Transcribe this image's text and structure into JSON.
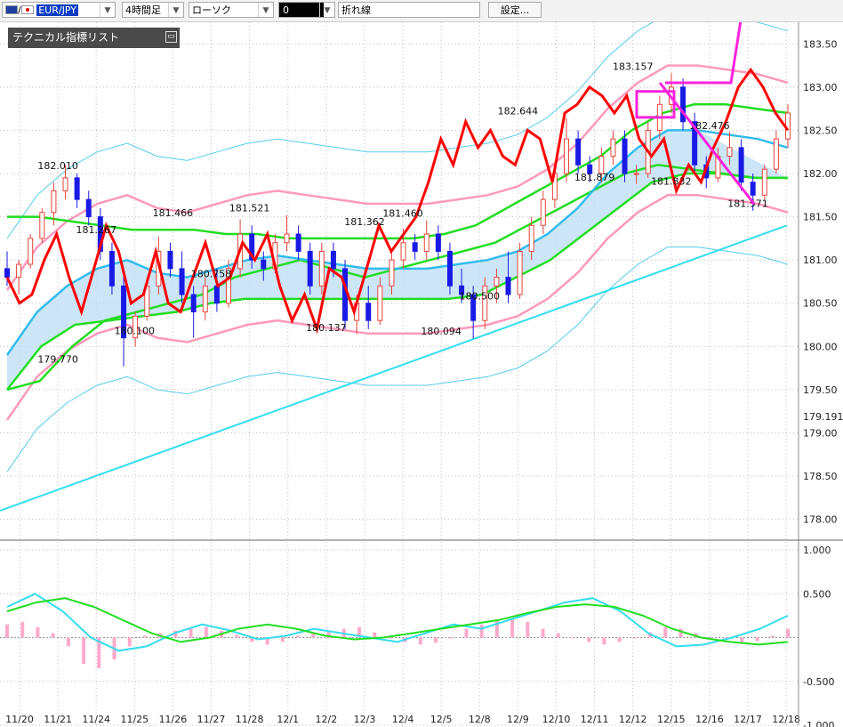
{
  "toolbar": {
    "symbol": "EUR/JPY",
    "timeframe": "4時間足",
    "chart_style": "ローソク",
    "compare_value": "0",
    "line_type": "折れ線",
    "settings_label": "設定..."
  },
  "indicator_panel": {
    "title": "テクニカル指標リスト"
  },
  "colors": {
    "bull_candle": "#e8433a",
    "bear_candle": "#1a1ae6",
    "heikin_line": "#ff0000",
    "ma_green": "#22dd22",
    "ma_cyan": "#33bbee",
    "bollinger_pink": "#ff99bb",
    "bollinger_outer": "#55ccee",
    "cloud_fill": "#bfe0f5",
    "trend_magenta": "#ff22dd",
    "grid": "#bfbfbf"
  },
  "chart_data": {
    "type": "line",
    "x_labels": [
      "11/20",
      "11/21",
      "11/24",
      "11/25",
      "11/26",
      "11/27",
      "11/28",
      "12/1",
      "12/2",
      "12/3",
      "12/4",
      "12/5",
      "12/8",
      "12/9",
      "12/10",
      "12/11",
      "12/12",
      "12/15",
      "12/16",
      "12/17",
      "12/18"
    ],
    "ylim": [
      177.78,
      183.75
    ],
    "y_ticks": [
      "183.50",
      "183.00",
      "182.50",
      "182.00",
      "181.50",
      "181.00",
      "180.50",
      "180.00",
      "179.50",
      "179.00",
      "178.50",
      "178.00"
    ],
    "current_price_label": "179.191",
    "price_annotations": [
      {
        "text": "182.010",
        "x": "11/21",
        "value": 182.01
      },
      {
        "text": "181.267",
        "x": "11/24",
        "value": 181.267
      },
      {
        "text": "179.770",
        "x": "11/21",
        "value": 179.77
      },
      {
        "text": "180.100",
        "x": "11/25",
        "value": 180.1
      },
      {
        "text": "181.466",
        "x": "11/26",
        "value": 181.466
      },
      {
        "text": "180.758",
        "x": "11/27",
        "value": 180.758
      },
      {
        "text": "181.521",
        "x": "11/28",
        "value": 181.521
      },
      {
        "text": "180.137",
        "x": "12/2",
        "value": 180.137
      },
      {
        "text": "181.362",
        "x": "12/3",
        "value": 181.362
      },
      {
        "text": "181.460",
        "x": "12/4",
        "value": 181.46
      },
      {
        "text": "180.500",
        "x": "12/8",
        "value": 180.5
      },
      {
        "text": "180.094",
        "x": "12/5",
        "value": 180.094
      },
      {
        "text": "182.644",
        "x": "12/9",
        "value": 182.644
      },
      {
        "text": "181.879",
        "x": "12/11",
        "value": 181.879
      },
      {
        "text": "183.157",
        "x": "12/12",
        "value": 183.157
      },
      {
        "text": "181.832",
        "x": "12/15",
        "value": 181.832
      },
      {
        "text": "182.476",
        "x": "12/16",
        "value": 182.476
      },
      {
        "text": "181.571",
        "x": "12/17",
        "value": 181.571
      }
    ],
    "candles": [
      {
        "o": 180.9,
        "h": 181.1,
        "l": 180.7,
        "c": 180.8
      },
      {
        "o": 180.8,
        "h": 181.0,
        "l": 180.6,
        "c": 180.95
      },
      {
        "o": 180.95,
        "h": 181.3,
        "l": 180.9,
        "c": 181.25
      },
      {
        "o": 181.25,
        "h": 181.6,
        "l": 181.2,
        "c": 181.55
      },
      {
        "o": 181.55,
        "h": 181.9,
        "l": 181.4,
        "c": 181.8
      },
      {
        "o": 181.8,
        "h": 182.1,
        "l": 181.7,
        "c": 181.95
      },
      {
        "o": 181.95,
        "h": 182.0,
        "l": 181.6,
        "c": 181.7
      },
      {
        "o": 181.7,
        "h": 181.8,
        "l": 181.4,
        "c": 181.5
      },
      {
        "o": 181.5,
        "h": 181.6,
        "l": 181.0,
        "c": 181.1
      },
      {
        "o": 181.1,
        "h": 181.2,
        "l": 180.6,
        "c": 180.7
      },
      {
        "o": 180.7,
        "h": 180.8,
        "l": 179.77,
        "c": 180.1
      },
      {
        "o": 180.1,
        "h": 180.4,
        "l": 180.0,
        "c": 180.35
      },
      {
        "o": 180.35,
        "h": 180.8,
        "l": 180.3,
        "c": 180.7
      },
      {
        "o": 180.7,
        "h": 181.27,
        "l": 180.6,
        "c": 181.1
      },
      {
        "o": 181.1,
        "h": 181.2,
        "l": 180.8,
        "c": 180.9
      },
      {
        "o": 180.9,
        "h": 181.1,
        "l": 180.5,
        "c": 180.6
      },
      {
        "o": 180.6,
        "h": 180.7,
        "l": 180.1,
        "c": 180.4
      },
      {
        "o": 180.4,
        "h": 180.8,
        "l": 180.3,
        "c": 180.7
      },
      {
        "o": 180.7,
        "h": 180.9,
        "l": 180.4,
        "c": 180.5
      },
      {
        "o": 180.5,
        "h": 181.0,
        "l": 180.45,
        "c": 180.9
      },
      {
        "o": 180.9,
        "h": 181.47,
        "l": 180.8,
        "c": 181.3
      },
      {
        "o": 181.3,
        "h": 181.4,
        "l": 180.9,
        "c": 181.0
      },
      {
        "o": 181.0,
        "h": 181.1,
        "l": 180.76,
        "c": 180.9
      },
      {
        "o": 180.9,
        "h": 181.3,
        "l": 180.85,
        "c": 181.2
      },
      {
        "o": 181.2,
        "h": 181.52,
        "l": 181.1,
        "c": 181.3
      },
      {
        "o": 181.3,
        "h": 181.4,
        "l": 181.0,
        "c": 181.1
      },
      {
        "o": 181.1,
        "h": 181.2,
        "l": 180.6,
        "c": 180.7
      },
      {
        "o": 180.7,
        "h": 181.2,
        "l": 180.6,
        "c": 181.1
      },
      {
        "o": 181.1,
        "h": 181.2,
        "l": 180.8,
        "c": 180.9
      },
      {
        "o": 180.9,
        "h": 181.0,
        "l": 180.2,
        "c": 180.3
      },
      {
        "o": 180.3,
        "h": 180.6,
        "l": 180.14,
        "c": 180.5
      },
      {
        "o": 180.5,
        "h": 180.7,
        "l": 180.2,
        "c": 180.3
      },
      {
        "o": 180.3,
        "h": 180.8,
        "l": 180.25,
        "c": 180.7
      },
      {
        "o": 180.7,
        "h": 181.1,
        "l": 180.6,
        "c": 181.0
      },
      {
        "o": 181.0,
        "h": 181.36,
        "l": 180.9,
        "c": 181.2
      },
      {
        "o": 181.2,
        "h": 181.3,
        "l": 181.0,
        "c": 181.1
      },
      {
        "o": 181.1,
        "h": 181.46,
        "l": 181.0,
        "c": 181.3
      },
      {
        "o": 181.3,
        "h": 181.4,
        "l": 181.0,
        "c": 181.1
      },
      {
        "o": 181.1,
        "h": 181.2,
        "l": 180.6,
        "c": 180.7
      },
      {
        "o": 180.7,
        "h": 180.9,
        "l": 180.5,
        "c": 180.6
      },
      {
        "o": 180.6,
        "h": 180.7,
        "l": 180.09,
        "c": 180.3
      },
      {
        "o": 180.3,
        "h": 180.8,
        "l": 180.2,
        "c": 180.7
      },
      {
        "o": 180.7,
        "h": 180.9,
        "l": 180.5,
        "c": 180.8
      },
      {
        "o": 180.8,
        "h": 181.1,
        "l": 180.5,
        "c": 180.6
      },
      {
        "o": 180.6,
        "h": 181.2,
        "l": 180.55,
        "c": 181.1
      },
      {
        "o": 181.1,
        "h": 181.5,
        "l": 181.0,
        "c": 181.4
      },
      {
        "o": 181.4,
        "h": 181.8,
        "l": 181.3,
        "c": 181.7
      },
      {
        "o": 181.7,
        "h": 182.1,
        "l": 181.6,
        "c": 182.0
      },
      {
        "o": 182.0,
        "h": 182.64,
        "l": 181.9,
        "c": 182.4
      },
      {
        "o": 182.4,
        "h": 182.5,
        "l": 182.0,
        "c": 182.1
      },
      {
        "o": 182.1,
        "h": 182.2,
        "l": 181.9,
        "c": 182.0
      },
      {
        "o": 182.0,
        "h": 182.3,
        "l": 181.9,
        "c": 182.2
      },
      {
        "o": 182.2,
        "h": 182.5,
        "l": 182.1,
        "c": 182.4
      },
      {
        "o": 182.4,
        "h": 182.5,
        "l": 181.9,
        "c": 182.0
      },
      {
        "o": 182.0,
        "h": 182.1,
        "l": 181.88,
        "c": 182.0
      },
      {
        "o": 182.0,
        "h": 182.6,
        "l": 181.95,
        "c": 182.5
      },
      {
        "o": 182.5,
        "h": 182.9,
        "l": 182.4,
        "c": 182.8
      },
      {
        "o": 182.8,
        "h": 183.16,
        "l": 182.7,
        "c": 183.0
      },
      {
        "o": 183.0,
        "h": 183.1,
        "l": 182.5,
        "c": 182.6
      },
      {
        "o": 182.6,
        "h": 182.7,
        "l": 182.0,
        "c": 182.1
      },
      {
        "o": 182.1,
        "h": 182.2,
        "l": 181.83,
        "c": 181.95
      },
      {
        "o": 181.95,
        "h": 182.3,
        "l": 181.9,
        "c": 182.2
      },
      {
        "o": 182.2,
        "h": 182.48,
        "l": 182.1,
        "c": 182.3
      },
      {
        "o": 182.3,
        "h": 182.4,
        "l": 181.8,
        "c": 181.9
      },
      {
        "o": 181.9,
        "h": 182.0,
        "l": 181.57,
        "c": 181.75
      },
      {
        "o": 181.75,
        "h": 182.1,
        "l": 181.7,
        "c": 182.05
      },
      {
        "o": 182.05,
        "h": 182.5,
        "l": 182.0,
        "c": 182.4
      },
      {
        "o": 182.4,
        "h": 182.8,
        "l": 182.3,
        "c": 182.7
      }
    ],
    "heikin_line": [
      180.8,
      180.5,
      180.6,
      181.0,
      181.3,
      180.8,
      180.4,
      180.9,
      181.4,
      181.1,
      180.5,
      180.6,
      181.1,
      180.5,
      180.4,
      180.8,
      181.2,
      180.7,
      180.8,
      181.2,
      181.0,
      181.3,
      180.7,
      180.3,
      180.6,
      180.2,
      180.9,
      180.8,
      180.4,
      180.9,
      181.4,
      181.1,
      181.3,
      181.5,
      181.9,
      182.4,
      182.1,
      182.6,
      182.3,
      182.5,
      182.2,
      182.1,
      182.5,
      182.4,
      181.9,
      182.7,
      182.8,
      183.0,
      182.9,
      182.7,
      182.9,
      182.4,
      182.2,
      182.4,
      181.8,
      182.1,
      181.9,
      182.3,
      182.6,
      183.0,
      183.2,
      183.0,
      182.7,
      182.5
    ],
    "ma_lines": {
      "green_upper": [
        181.5,
        181.5,
        181.45,
        181.4,
        181.35,
        181.35,
        181.35,
        181.3,
        181.3,
        181.25,
        181.25,
        181.25,
        181.25,
        181.25,
        181.3,
        181.4,
        181.6,
        181.8,
        182.0,
        182.2,
        182.5,
        182.7,
        182.8,
        182.8,
        182.75,
        182.7
      ],
      "green_mid": [
        179.5,
        179.6,
        180.0,
        180.3,
        180.4,
        180.5,
        180.6,
        180.8,
        180.9,
        181.0,
        180.9,
        180.8,
        180.9,
        181.0,
        181.1,
        181.2,
        181.4,
        181.6,
        181.8,
        182.0,
        182.1,
        182.05,
        182.0,
        181.95,
        181.95
      ],
      "green_lower": [
        179.5,
        180.0,
        180.25,
        180.3,
        180.35,
        180.4,
        180.5,
        180.55,
        180.55,
        180.55,
        180.55,
        180.55,
        180.55,
        180.55,
        180.6,
        180.8,
        181.0,
        181.3,
        181.6,
        181.9,
        182.0,
        182.0,
        181.95,
        181.95
      ],
      "cyan_mid": [
        179.9,
        180.4,
        180.7,
        180.9,
        181.0,
        180.85,
        180.8,
        180.9,
        181.0,
        181.05,
        181.0,
        180.95,
        180.9,
        180.9,
        180.9,
        180.95,
        181.0,
        181.1,
        181.3,
        181.6,
        182.0,
        182.3,
        182.5,
        182.5,
        182.45,
        182.4,
        182.3
      ]
    },
    "oscillator": {
      "ylim": [
        -1.0,
        1.0
      ],
      "ticks": [
        "1.000",
        "0.500",
        "-0.500",
        "-1.000"
      ],
      "histogram": [
        0.15,
        0.18,
        0.12,
        0.05,
        -0.1,
        -0.3,
        -0.35,
        -0.25,
        -0.1,
        0.02,
        0.05,
        0.08,
        0.1,
        0.12,
        0.08,
        0.03,
        -0.05,
        -0.08,
        -0.05,
        0.02,
        0.05,
        0.08,
        0.1,
        0.12,
        0.06,
        0.0,
        -0.05,
        -0.08,
        -0.06,
        0.0,
        0.1,
        0.15,
        0.2,
        0.22,
        0.18,
        0.1,
        0.05,
        0.0,
        -0.05,
        -0.08,
        -0.05,
        0.0,
        0.06,
        0.12,
        0.1,
        0.05,
        0.0,
        -0.02,
        -0.05,
        -0.04,
        0.02,
        0.1
      ],
      "cyan_line": [
        0.35,
        0.5,
        0.3,
        0.0,
        -0.15,
        -0.1,
        0.05,
        0.15,
        0.08,
        -0.02,
        0.02,
        0.1,
        0.05,
        0.0,
        -0.05,
        0.05,
        0.15,
        0.1,
        0.2,
        0.3,
        0.4,
        0.45,
        0.3,
        0.05,
        -0.1,
        -0.08,
        0.0,
        0.1,
        0.25
      ],
      "green_line": [
        0.3,
        0.4,
        0.45,
        0.35,
        0.2,
        0.05,
        -0.05,
        0.0,
        0.1,
        0.15,
        0.1,
        0.02,
        -0.02,
        0.0,
        0.05,
        0.1,
        0.15,
        0.2,
        0.28,
        0.35,
        0.38,
        0.35,
        0.25,
        0.1,
        0.0,
        -0.05,
        -0.08,
        -0.05
      ]
    }
  }
}
